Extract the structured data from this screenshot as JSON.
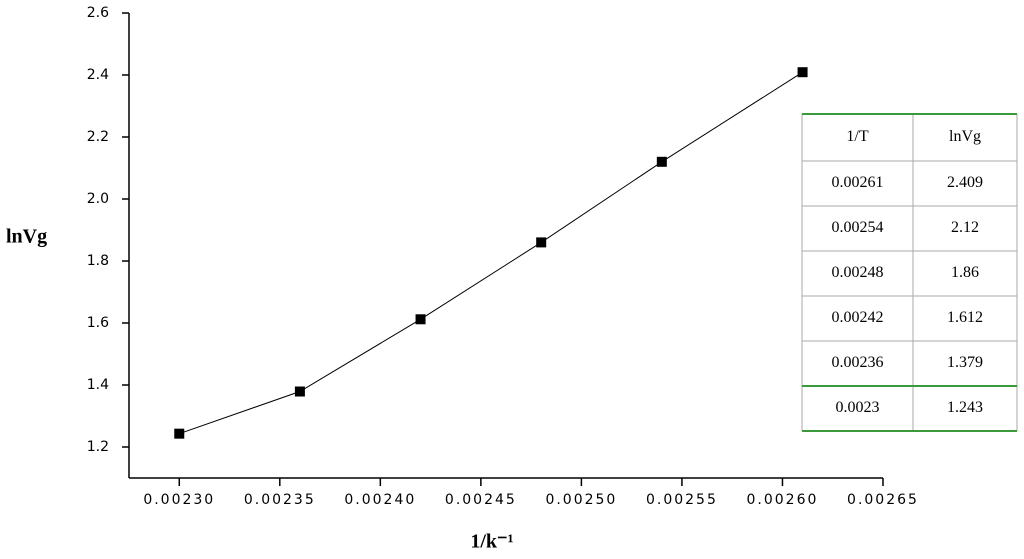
{
  "chart_data": {
    "type": "line",
    "x_label": "1/k⁻¹",
    "y_label": "lnVg",
    "x": [
      0.0023,
      0.00236,
      0.00242,
      0.00248,
      0.00254,
      0.00261
    ],
    "series": [
      {
        "color": "#000000",
        "values": [
          1.243,
          1.379,
          1.612,
          1.86,
          2.12,
          2.409
        ]
      }
    ],
    "xlim": [
      0.002275,
      0.00265
    ],
    "xticks": [
      {
        "value": 0.0023,
        "label": "0.00230"
      },
      {
        "value": 0.00235,
        "label": "0.00235"
      },
      {
        "value": 0.0024,
        "label": "0.00240"
      },
      {
        "value": 0.00245,
        "label": "0.00245"
      },
      {
        "value": 0.0025,
        "label": "0.00250"
      },
      {
        "value": 0.00255,
        "label": "0.00255"
      },
      {
        "value": 0.0026,
        "label": "0.00260"
      },
      {
        "value": 0.00265,
        "label": "0.00265"
      }
    ],
    "ylim": [
      1.1,
      2.6
    ],
    "yticks": [
      1.2,
      1.4,
      1.6,
      1.8,
      {
        "value": 2,
        "label": "2.0"
      },
      2.2,
      2.4,
      2.6
    ],
    "table": {
      "columns": [
        "1/T",
        "lnVg"
      ],
      "rows": [
        [
          "0.00261",
          "2.409"
        ],
        [
          "0.00254",
          "2.12"
        ],
        [
          "0.00248",
          "1.86"
        ],
        [
          "0.00242",
          "1.612"
        ],
        [
          "0.00236",
          "1.379"
        ],
        [
          "0.0023",
          "1.243"
        ]
      ]
    }
  }
}
